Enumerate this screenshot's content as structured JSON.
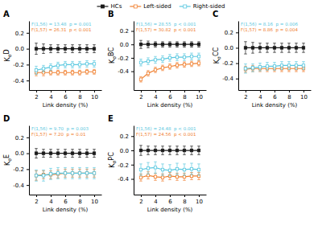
{
  "chart_data": [
    {
      "type": "line",
      "title": "A",
      "xlabel": "Link density (%)",
      "ylabel": "KσD",
      "x": [
        2,
        3,
        4,
        5,
        6,
        7,
        8,
        9,
        10
      ],
      "xlim": [
        1,
        11
      ],
      "xticks": [
        2,
        4,
        6,
        8,
        10
      ],
      "ylim": [
        -0.52,
        0.35
      ],
      "yticks": [
        -0.4,
        -0.2,
        {
          "value": 0.0,
          "label": "0.0"
        },
        0.2
      ],
      "legend": "top",
      "annotations": [
        {
          "text": "F(1,56) = 13.48  p = 0.001",
          "color": "#5bc8e0"
        },
        {
          "text": "F(1,57) = 26.31  p < 0.001",
          "color": "#f08030"
        }
      ],
      "series": [
        {
          "name": "HCs",
          "color": "#1a1a1a",
          "marker": "square",
          "values": [
            0.0,
            0.0,
            0.0,
            0.0,
            0.0,
            0.0,
            0.0,
            0.0,
            0.0
          ],
          "errors": [
            0.07,
            0.06,
            0.05,
            0.05,
            0.05,
            0.05,
            0.05,
            0.05,
            0.05
          ]
        },
        {
          "name": "Left-sided",
          "color": "#f08030",
          "marker": "square-open",
          "values": [
            -0.3,
            -0.3,
            -0.3,
            -0.3,
            -0.3,
            -0.3,
            -0.3,
            -0.29,
            -0.29
          ],
          "errors": [
            0.04,
            0.04,
            0.03,
            0.03,
            0.03,
            0.03,
            0.03,
            0.03,
            0.03
          ]
        },
        {
          "name": "Right-sided",
          "color": "#5bc8e0",
          "marker": "square-open",
          "values": [
            -0.27,
            -0.25,
            -0.23,
            -0.21,
            -0.2,
            -0.2,
            -0.2,
            -0.19,
            -0.19
          ],
          "errors": [
            0.05,
            0.04,
            0.04,
            0.04,
            0.04,
            0.04,
            0.04,
            0.04,
            0.04
          ]
        }
      ]
    },
    {
      "type": "line",
      "title": "B",
      "xlabel": "Link density (%)",
      "ylabel": "KσBC",
      "x": [
        2,
        3,
        4,
        5,
        6,
        7,
        8,
        9,
        10
      ],
      "xlim": [
        1,
        11
      ],
      "xticks": [
        2,
        4,
        6,
        8,
        10
      ],
      "ylim": [
        -0.68,
        0.35
      ],
      "yticks": [
        -0.4,
        -0.2,
        {
          "value": 0.0,
          "label": "0.0"
        },
        0.2
      ],
      "annotations": [
        {
          "text": "F(1,56) = 28.55  p < 0.001",
          "color": "#5bc8e0"
        },
        {
          "text": "F(1,57) = 30.82  p < 0.001",
          "color": "#f08030"
        }
      ],
      "series": [
        {
          "color": "#1a1a1a",
          "marker": "square",
          "values": [
            0.0,
            0.0,
            0.0,
            0.0,
            0.0,
            0.0,
            0.0,
            0.0,
            0.0
          ],
          "errors": [
            0.06,
            0.05,
            0.04,
            0.04,
            0.04,
            0.04,
            0.04,
            0.04,
            0.04
          ]
        },
        {
          "color": "#f08030",
          "marker": "square-open",
          "values": [
            -0.52,
            -0.43,
            -0.38,
            -0.35,
            -0.33,
            -0.31,
            -0.3,
            -0.29,
            -0.28
          ],
          "errors": [
            0.04,
            0.04,
            0.04,
            0.04,
            0.04,
            0.04,
            0.04,
            0.04,
            0.04
          ]
        },
        {
          "color": "#5bc8e0",
          "marker": "square-open",
          "values": [
            -0.27,
            -0.25,
            -0.23,
            -0.22,
            -0.2,
            -0.19,
            -0.19,
            -0.18,
            -0.18
          ],
          "errors": [
            0.05,
            0.05,
            0.05,
            0.05,
            0.05,
            0.05,
            0.05,
            0.05,
            0.05
          ]
        }
      ]
    },
    {
      "type": "line",
      "title": "C",
      "xlabel": "Link density (%)",
      "ylabel": "KσCC",
      "x": [
        2,
        3,
        4,
        5,
        6,
        7,
        8,
        9,
        10
      ],
      "xlim": [
        1,
        11
      ],
      "xticks": [
        2,
        4,
        6,
        8,
        10
      ],
      "ylim": [
        -0.55,
        0.35
      ],
      "yticks": [
        -0.4,
        -0.2,
        {
          "value": 0.0,
          "label": "0.0"
        },
        0.2
      ],
      "annotations": [
        {
          "text": "F(1,56) = 8.16  p = 0.006",
          "color": "#5bc8e0"
        },
        {
          "text": "F(1,57) = 8.86  p = 0.004",
          "color": "#f08030"
        }
      ],
      "series": [
        {
          "color": "#1a1a1a",
          "marker": "square",
          "values": [
            0.0,
            0.0,
            0.0,
            0.0,
            0.0,
            0.0,
            0.0,
            0.0,
            0.0
          ],
          "errors": [
            0.08,
            0.07,
            0.06,
            0.06,
            0.06,
            0.06,
            0.06,
            0.06,
            0.06
          ]
        },
        {
          "color": "#f08030",
          "marker": "square-open",
          "values": [
            -0.28,
            -0.27,
            -0.27,
            -0.27,
            -0.27,
            -0.27,
            -0.27,
            -0.27,
            -0.27
          ],
          "errors": [
            0.04,
            0.04,
            0.04,
            0.04,
            0.04,
            0.04,
            0.04,
            0.04,
            0.04
          ]
        },
        {
          "color": "#5bc8e0",
          "marker": "square-open",
          "values": [
            -0.27,
            -0.26,
            -0.25,
            -0.24,
            -0.24,
            -0.23,
            -0.23,
            -0.23,
            -0.23
          ],
          "errors": [
            0.06,
            0.05,
            0.05,
            0.05,
            0.05,
            0.05,
            0.05,
            0.05,
            0.05
          ]
        }
      ]
    },
    {
      "type": "line",
      "title": "D",
      "xlabel": "Link density (%)",
      "ylabel": "KσE",
      "x": [
        2,
        3,
        4,
        5,
        6,
        7,
        8,
        9,
        10
      ],
      "xlim": [
        1,
        11
      ],
      "xticks": [
        2,
        4,
        6,
        8,
        10
      ],
      "ylim": [
        -0.52,
        0.35
      ],
      "yticks": [
        -0.4,
        -0.2,
        {
          "value": 0.0,
          "label": "0.0"
        },
        0.2
      ],
      "annotations": [
        {
          "text": "F(1,56) = 9.70  p = 0.003",
          "color": "#5bc8e0"
        },
        {
          "text": "F(1,57) = 7.20  p = 0.01",
          "color": "#f08030"
        }
      ],
      "series": [
        {
          "color": "#1a1a1a",
          "marker": "square",
          "values": [
            0.0,
            0.0,
            0.0,
            0.0,
            0.0,
            0.0,
            0.0,
            0.0,
            0.0
          ],
          "errors": [
            0.06,
            0.05,
            0.05,
            0.05,
            0.05,
            0.05,
            0.05,
            0.05,
            0.05
          ]
        },
        {
          "color": "#f08030",
          "marker": "square-open",
          "values": [
            -0.28,
            -0.27,
            -0.27,
            -0.26,
            -0.25,
            -0.25,
            -0.25,
            -0.25,
            -0.25
          ],
          "errors": [
            0.06,
            0.05,
            0.05,
            0.05,
            0.05,
            0.05,
            0.05,
            0.05,
            0.05
          ]
        },
        {
          "color": "#5bc8e0",
          "marker": "square-open",
          "values": [
            -0.28,
            -0.28,
            -0.26,
            -0.25,
            -0.25,
            -0.25,
            -0.25,
            -0.25,
            -0.25
          ],
          "errors": [
            0.07,
            0.07,
            0.07,
            0.07,
            0.07,
            0.07,
            0.07,
            0.07,
            0.07
          ]
        }
      ]
    },
    {
      "type": "line",
      "title": "E",
      "xlabel": "Link density (%)",
      "ylabel": "KσPC",
      "x": [
        2,
        3,
        4,
        5,
        6,
        7,
        8,
        9,
        10
      ],
      "xlim": [
        1,
        11
      ],
      "xticks": [
        2,
        4,
        6,
        8,
        10
      ],
      "ylim": [
        -0.62,
        0.35
      ],
      "yticks": [
        -0.4,
        -0.2,
        {
          "value": 0.0,
          "label": "0.0"
        },
        0.2
      ],
      "annotations": [
        {
          "text": "F(1,56) = 24.48  p < 0.001",
          "color": "#5bc8e0"
        },
        {
          "text": "F(1,57) = 24.56  p < 0.001",
          "color": "#f08030"
        }
      ],
      "series": [
        {
          "color": "#1a1a1a",
          "marker": "square",
          "values": [
            0.0,
            0.0,
            0.0,
            0.0,
            0.0,
            0.0,
            0.0,
            0.0,
            0.0
          ],
          "errors": [
            0.07,
            0.06,
            0.06,
            0.06,
            0.06,
            0.06,
            0.06,
            0.06,
            0.06
          ]
        },
        {
          "color": "#f08030",
          "marker": "square-open",
          "values": [
            -0.38,
            -0.35,
            -0.37,
            -0.38,
            -0.36,
            -0.37,
            -0.37,
            -0.36,
            -0.36
          ],
          "errors": [
            0.05,
            0.05,
            0.05,
            0.05,
            0.05,
            0.05,
            0.05,
            0.05,
            0.05
          ]
        },
        {
          "color": "#5bc8e0",
          "marker": "square-open",
          "values": [
            -0.27,
            -0.25,
            -0.24,
            -0.27,
            -0.28,
            -0.26,
            -0.27,
            -0.26,
            -0.27
          ],
          "errors": [
            0.08,
            0.08,
            0.08,
            0.08,
            0.08,
            0.08,
            0.08,
            0.08,
            0.08
          ]
        }
      ]
    }
  ]
}
